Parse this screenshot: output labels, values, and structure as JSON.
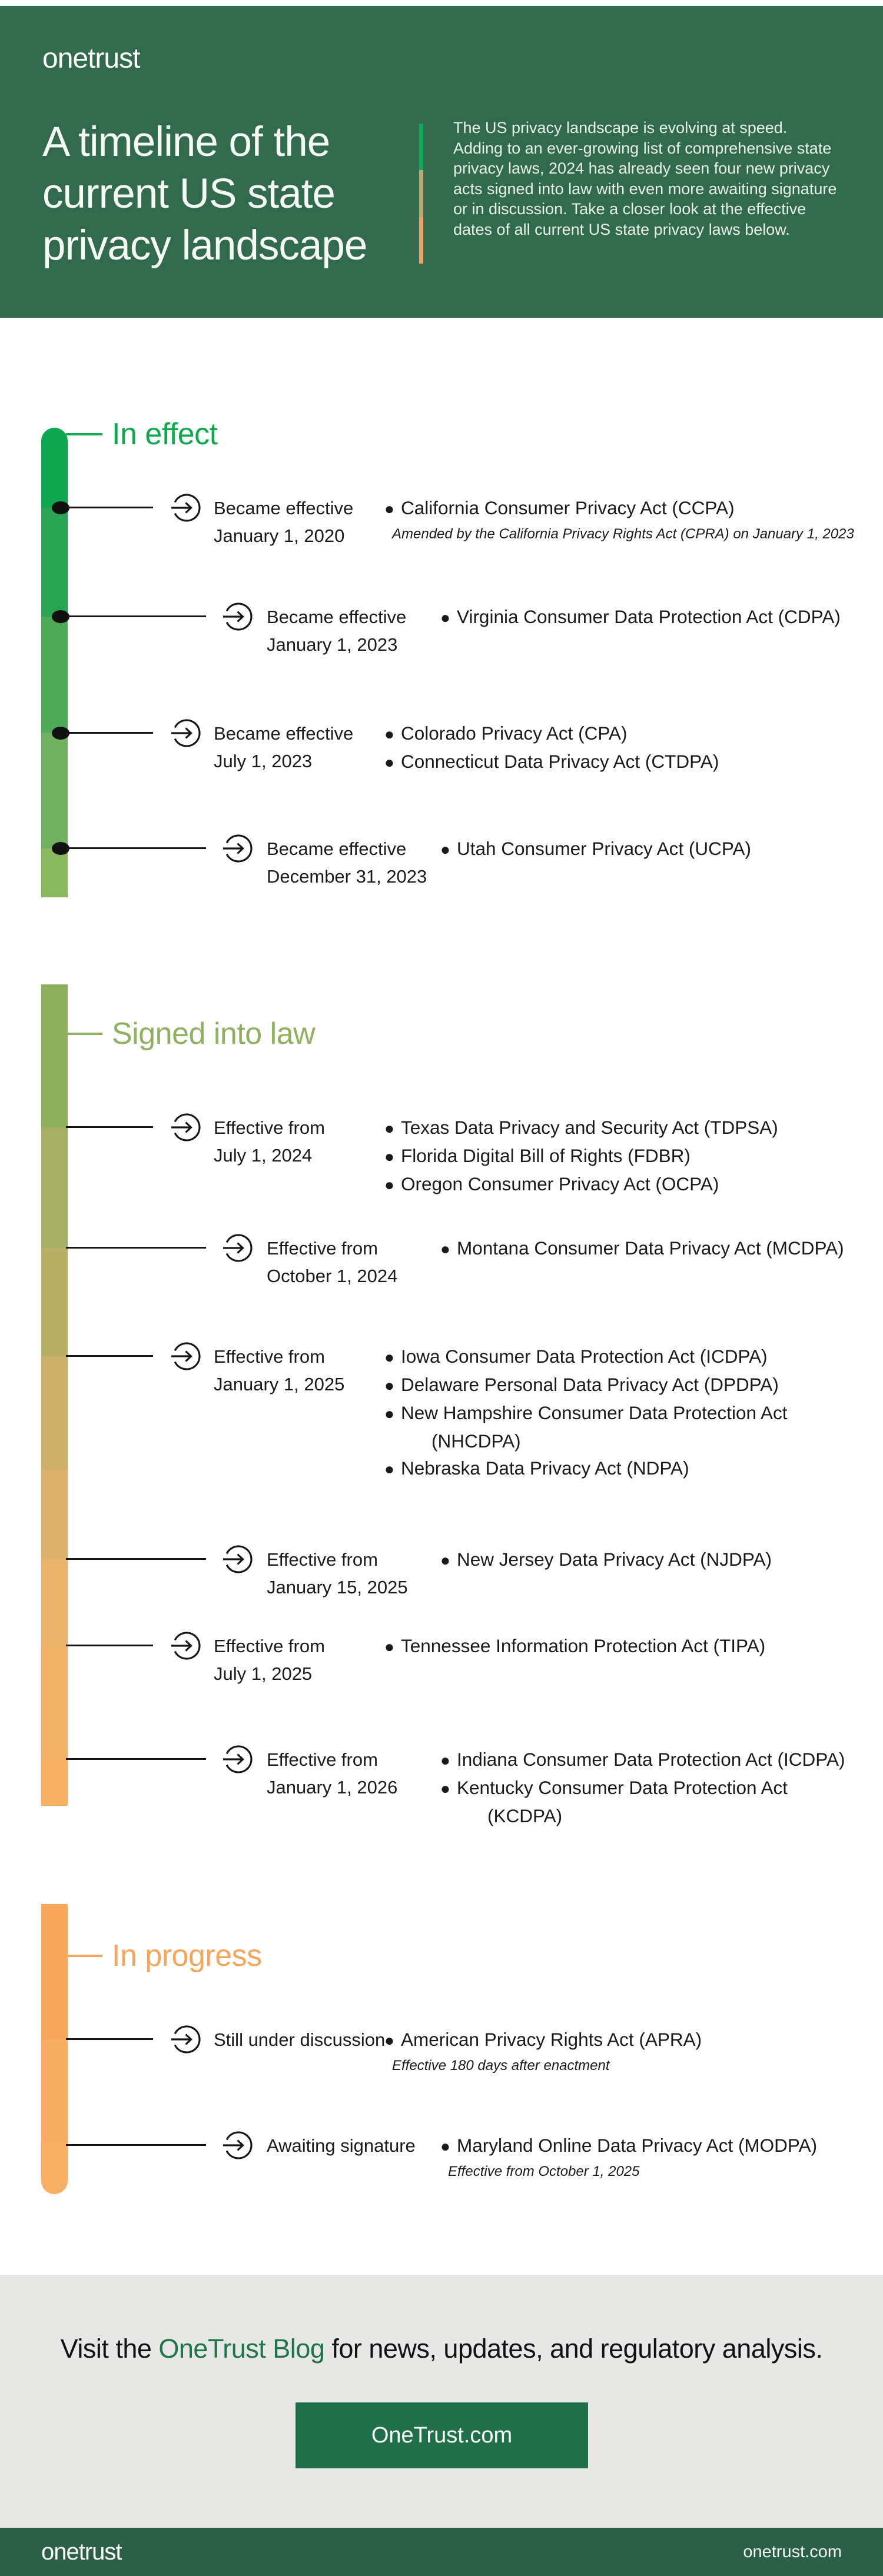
{
  "header": {
    "logo": "onetrust",
    "title_lines": [
      "A timeline of the",
      "current US state",
      "privacy landscape"
    ],
    "intro": "The US privacy landscape is evolving at speed. Adding to an ever-growing list of comprehensive state privacy laws, 2024 has already seen four new privacy acts signed into law with even more awaiting signature or in discussion. Take a closer look at the effective dates of all current US state privacy laws below."
  },
  "sections": [
    {
      "id": "in-effect",
      "title": "In effect",
      "color": "#0DA94F",
      "entries": [
        {
          "status": "Became effective",
          "date": "January 1, 2020",
          "laws": [
            {
              "name": "California Consumer Privacy Act (CCPA)",
              "note": "Amended by the California Privacy Rights Act (CPRA) on January 1, 2023"
            }
          ]
        },
        {
          "status": "Became effective",
          "date": "January 1, 2023",
          "laws": [
            {
              "name": "Virginia Consumer Data Protection Act (CDPA)"
            }
          ]
        },
        {
          "status": "Became effective",
          "date": "July 1, 2023",
          "laws": [
            {
              "name": "Colorado Privacy Act (CPA)"
            },
            {
              "name": "Connecticut Data Privacy Act (CTDPA)"
            }
          ]
        },
        {
          "status": "Became effective",
          "date": "December 31, 2023",
          "laws": [
            {
              "name": "Utah Consumer Privacy Act (UCPA)"
            }
          ]
        }
      ]
    },
    {
      "id": "signed-into-law",
      "title": "Signed into law",
      "color": "#8FB05F",
      "entries": [
        {
          "status": "Effective from",
          "date": "July 1, 2024",
          "laws": [
            {
              "name": "Texas Data Privacy and Security Act (TDPSA)"
            },
            {
              "name": "Florida Digital Bill of Rights (FDBR)"
            },
            {
              "name": "Oregon Consumer Privacy Act (OCPA)"
            }
          ]
        },
        {
          "status": "Effective from",
          "date": "October 1, 2024",
          "laws": [
            {
              "name": "Montana Consumer Data Privacy Act (MCDPA)"
            }
          ]
        },
        {
          "status": "Effective from",
          "date": "January 1, 2025",
          "laws": [
            {
              "name": "Iowa Consumer Data Protection Act (ICDPA)"
            },
            {
              "name": "Delaware Personal Data Privacy Act (DPDPA)"
            },
            {
              "name": "New Hampshire Consumer Data Protection Act",
              "name2": "(NHCDPA)"
            },
            {
              "name": "Nebraska Data Privacy Act (NDPA)"
            }
          ]
        },
        {
          "status": "Effective from",
          "date": "January 15, 2025",
          "laws": [
            {
              "name": "New Jersey Data Privacy Act (NJDPA)"
            }
          ]
        },
        {
          "status": "Effective from",
          "date": "July 1, 2025",
          "laws": [
            {
              "name": "Tennessee Information Protection Act (TIPA)"
            }
          ]
        },
        {
          "status": "Effective from",
          "date": "January 1, 2026",
          "laws": [
            {
              "name": "Indiana Consumer Data Protection Act (ICDPA)"
            },
            {
              "name": "Kentucky Consumer Data Protection Act",
              "name2": "(KCDPA)"
            }
          ]
        }
      ]
    },
    {
      "id": "in-progress",
      "title": "In progress",
      "color": "#F6A65C",
      "entries": [
        {
          "status": "Still under discussion",
          "laws": [
            {
              "name": "American Privacy Rights Act (APRA)",
              "note": "Effective 180 days after enactment"
            }
          ]
        },
        {
          "status": "Awaiting signature",
          "laws": [
            {
              "name": "Maryland Online Data Privacy Act (MODPA)",
              "note": "Effective from October 1, 2025"
            }
          ]
        }
      ]
    }
  ],
  "footer": {
    "headline_pre": "Visit the ",
    "headline_link": "OneTrust Blog",
    "headline_post": " for news, updates, and regulatory analysis.",
    "button_label": "OneTrust.com",
    "bottom_logo": "onetrust",
    "bottom_url": "onetrust.com"
  },
  "colors": {
    "header_green": "#316A4D",
    "bottom_bar_green": "#2C5F48",
    "button_green": "#1F6F48",
    "blog_link_green": "#1E7549",
    "in_effect_green": "#0DA94F",
    "signed_olive": "#8FB05F",
    "progress_orange": "#F6A65C",
    "footer_gray": "#E7E7E5",
    "text_dark": "#1A1A1A",
    "bar_in_effect_segments": [
      "#0CA750",
      "#28A452",
      "#4FAA59",
      "#70B25F",
      "#8CB95E"
    ],
    "bar_signed_segments": [
      "#8DB05F",
      "#A5AE62",
      "#BAB065",
      "#CBB168",
      "#DCB26B",
      "#EAB46D",
      "#F3B26A",
      "#F9AF64"
    ],
    "bar_progress_segments": [
      "#F8A85D",
      "#F9AC63",
      "#FAAF66"
    ],
    "divider_segments": [
      "#0FA957",
      "#BCA96B",
      "#EDA25F"
    ]
  }
}
